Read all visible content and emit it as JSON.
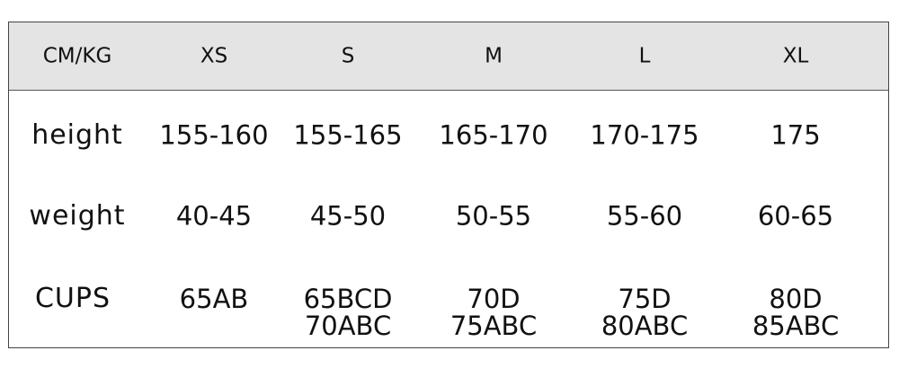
{
  "header": [
    "CM/KG",
    "XS",
    "S",
    "M",
    "L",
    "XL"
  ],
  "rows": [
    {
      "label": "height",
      "values": [
        "155-160",
        "155-165",
        "165-170",
        "170-175",
        "175"
      ]
    },
    {
      "label": "weight",
      "values": [
        "40-45",
        "45-50",
        "50-55",
        "55-60",
        "60-65"
      ]
    },
    {
      "label": "CUPS",
      "values": [
        [
          "65AB"
        ],
        [
          "65BCD",
          "70ABC"
        ],
        [
          "70D",
          "75ABC"
        ],
        [
          "75D",
          "80ABC"
        ],
        [
          "80D",
          "85ABC"
        ]
      ]
    }
  ],
  "colors": {
    "header_bg": "#e4e4e4",
    "border": "#444444",
    "text": "#111111"
  }
}
